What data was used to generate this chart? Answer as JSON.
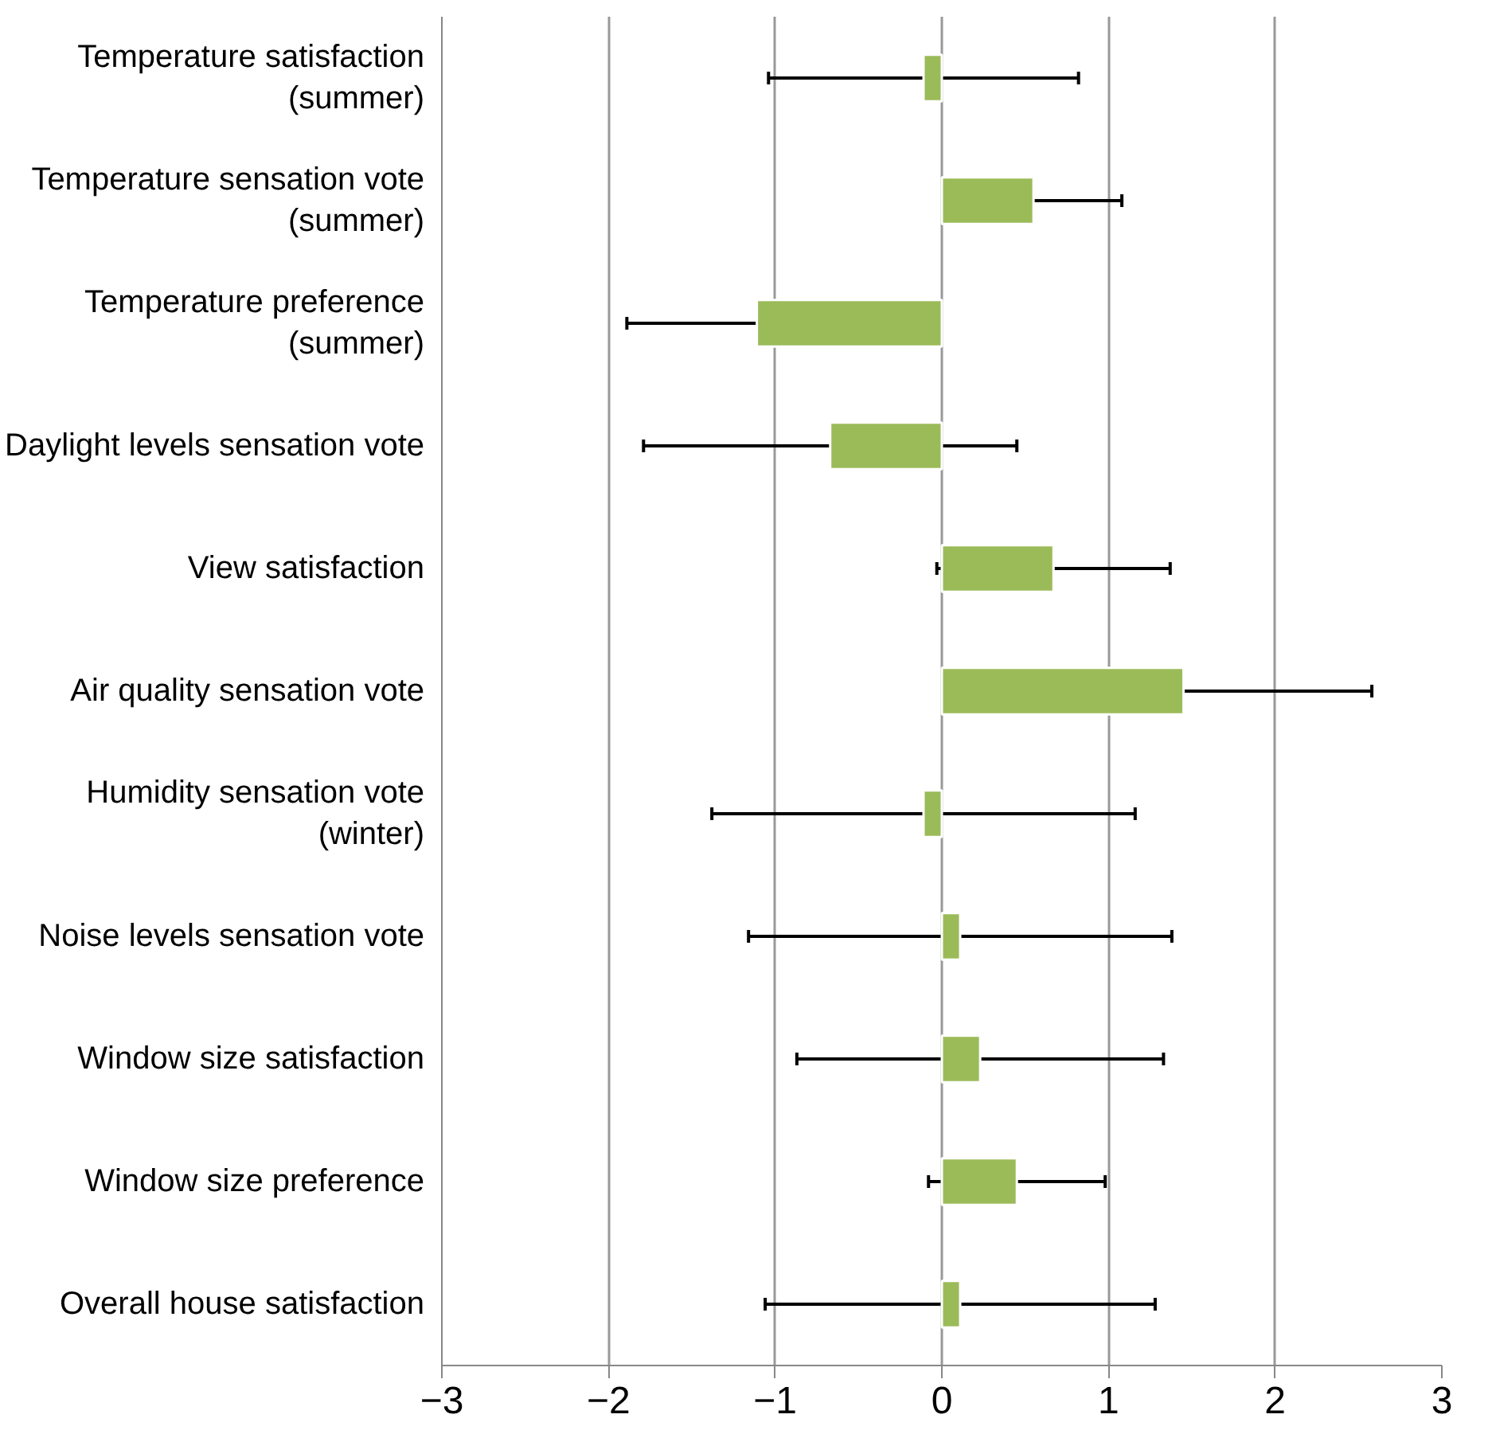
{
  "chart_data": {
    "type": "bar",
    "orientation": "horizontal",
    "categories": [
      "Temperature satisfaction\n(summer)",
      "Temperature sensation vote\n(summer)",
      "Temperature preference\n(summer)",
      "Daylight levels sensation vote",
      "View satisfaction",
      "Air quality sensation vote",
      "Humidity sensation vote\n(winter)",
      "Noise levels sensation vote",
      "Window size satisfaction",
      "Window size preference",
      "Overall house satisfaction"
    ],
    "values": [
      -0.11,
      0.55,
      -1.11,
      -0.67,
      0.67,
      1.45,
      -0.11,
      0.11,
      0.23,
      0.45,
      0.11
    ],
    "errors": [
      0.93,
      0.53,
      0.78,
      1.12,
      0.7,
      1.13,
      1.27,
      1.27,
      1.1,
      0.53,
      1.17
    ],
    "color": "#9bbb59",
    "xlim": [
      -3,
      3
    ],
    "xticks": [
      -3,
      -2,
      -1,
      0,
      1,
      2,
      3
    ],
    "grid": "x"
  }
}
